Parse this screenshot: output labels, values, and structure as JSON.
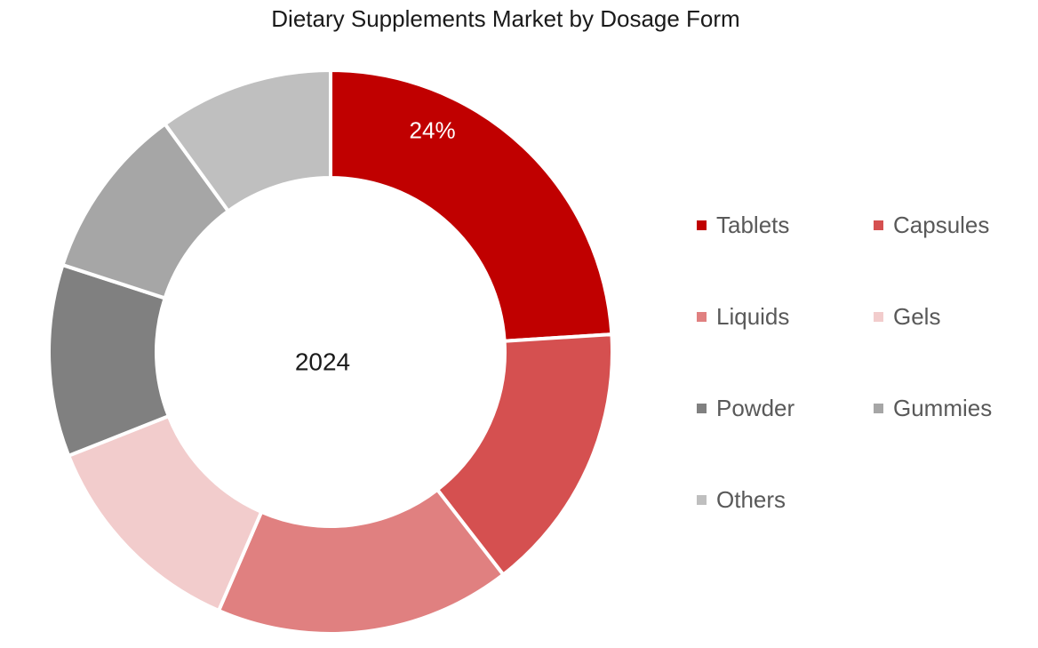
{
  "chart_data": {
    "type": "donut",
    "title": "Dietary Supplements Market by Dosage Form",
    "center_label": "2024",
    "legend_position": "right",
    "slices": [
      {
        "name": "Tablets",
        "value": 24,
        "color": "#c00000",
        "show_label": true
      },
      {
        "name": "Capsules",
        "value": 15.5,
        "color": "#d55050",
        "show_label": false
      },
      {
        "name": "Liquids",
        "value": 17,
        "color": "#e08080",
        "show_label": false
      },
      {
        "name": "Gels",
        "value": 12.5,
        "color": "#f2cccc",
        "show_label": false
      },
      {
        "name": "Powder",
        "value": 11,
        "color": "#808080",
        "show_label": false
      },
      {
        "name": "Gummies",
        "value": 10,
        "color": "#a6a6a6",
        "show_label": false
      },
      {
        "name": "Others",
        "value": 10,
        "color": "#bfbfbf",
        "show_label": false
      }
    ],
    "value_suffix": "%"
  }
}
